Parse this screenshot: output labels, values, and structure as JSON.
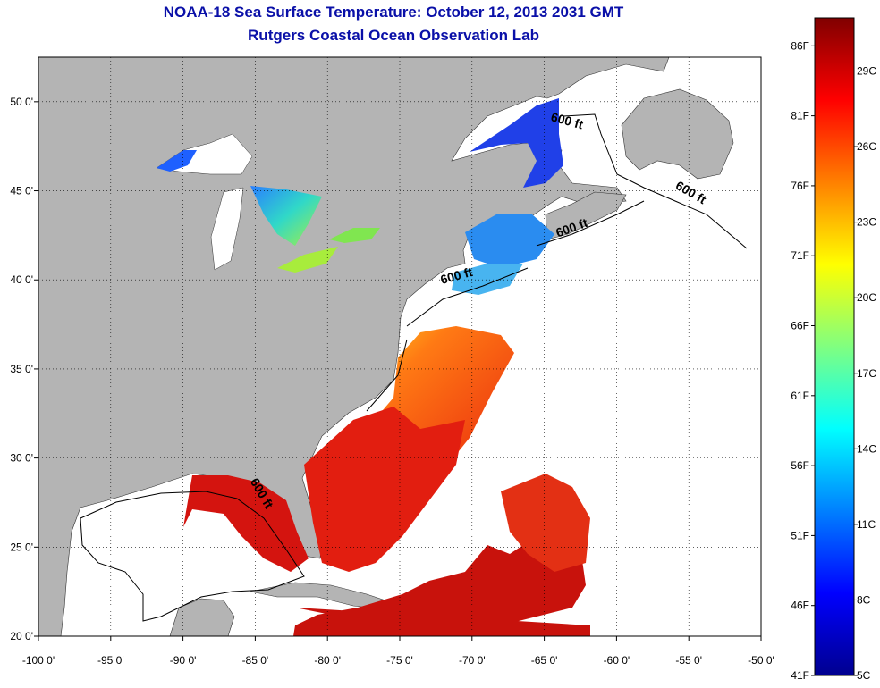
{
  "title": {
    "line1": "NOAA-18 Sea Surface Temperature:  October 12, 2013 2031 GMT",
    "line2": "Rutgers Coastal Ocean Observation Lab"
  },
  "map": {
    "lon_range": [
      -100,
      -50
    ],
    "lat_range": [
      20,
      52.5
    ],
    "lon_ticks": [
      {
        "value": -100,
        "label": "-100 0'"
      },
      {
        "value": -95,
        "label": "-95 0'"
      },
      {
        "value": -90,
        "label": "-90 0'"
      },
      {
        "value": -85,
        "label": "-85 0'"
      },
      {
        "value": -80,
        "label": "-80 0'"
      },
      {
        "value": -75,
        "label": "-75 0'"
      },
      {
        "value": -70,
        "label": "-70 0'"
      },
      {
        "value": -65,
        "label": "-65 0'"
      },
      {
        "value": -60,
        "label": "-60 0'"
      },
      {
        "value": -55,
        "label": "-55 0'"
      },
      {
        "value": -50,
        "label": "-50 0'"
      }
    ],
    "lat_ticks": [
      {
        "value": 20,
        "label": "20 0'"
      },
      {
        "value": 25,
        "label": "25 0'"
      },
      {
        "value": 30,
        "label": "30 0'"
      },
      {
        "value": 35,
        "label": "35 0'"
      },
      {
        "value": 40,
        "label": "40 0'"
      },
      {
        "value": 45,
        "label": "45 0'"
      },
      {
        "value": 50,
        "label": "50 0'"
      }
    ],
    "contour_labels": [
      {
        "text": "600 ft",
        "lon": -63.5,
        "lat": 48.7,
        "rotate": 15
      },
      {
        "text": "600 ft",
        "lon": -55.0,
        "lat": 44.7,
        "rotate": 30
      },
      {
        "text": "600 ft",
        "lon": -63.0,
        "lat": 42.7,
        "rotate": -20
      },
      {
        "text": "600 ft",
        "lon": -71.0,
        "lat": 40.0,
        "rotate": -15
      },
      {
        "text": "600 ft",
        "lon": -84.8,
        "lat": 27.9,
        "rotate": 60
      }
    ],
    "colors": {
      "land": "#b4b4b4",
      "ocean_nodata": "#ffffff",
      "gridline": "#000000"
    }
  },
  "colorbar": {
    "min_f": 41,
    "max_f": 88,
    "f_ticks": [
      {
        "value": 41,
        "label": "41F"
      },
      {
        "value": 46,
        "label": "46F"
      },
      {
        "value": 51,
        "label": "51F"
      },
      {
        "value": 56,
        "label": "56F"
      },
      {
        "value": 61,
        "label": "61F"
      },
      {
        "value": 66,
        "label": "66F"
      },
      {
        "value": 71,
        "label": "71F"
      },
      {
        "value": 76,
        "label": "76F"
      },
      {
        "value": 81,
        "label": "81F"
      },
      {
        "value": 86,
        "label": "86F"
      }
    ],
    "c_ticks": [
      {
        "value": 5,
        "label": "5C"
      },
      {
        "value": 8,
        "label": "8C"
      },
      {
        "value": 11,
        "label": "11C"
      },
      {
        "value": 14,
        "label": "14C"
      },
      {
        "value": 17,
        "label": "17C"
      },
      {
        "value": 20,
        "label": "20C"
      },
      {
        "value": 23,
        "label": "23C"
      },
      {
        "value": 26,
        "label": "26C"
      },
      {
        "value": 29,
        "label": "29C"
      }
    ],
    "palette": [
      "#00008f",
      "#0000ff",
      "#0080ff",
      "#00ffff",
      "#80ff80",
      "#ffff00",
      "#ff8000",
      "#ff0000",
      "#800000"
    ]
  }
}
